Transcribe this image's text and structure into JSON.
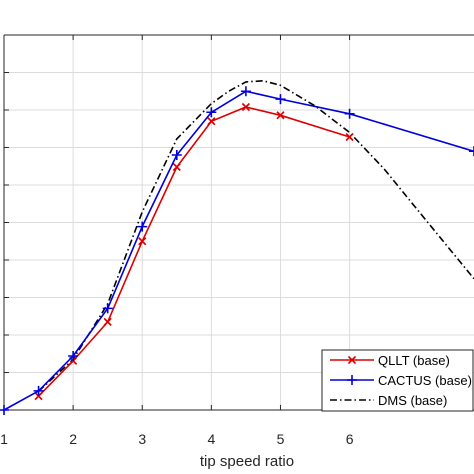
{
  "chart_data": {
    "type": "line",
    "xlabel": "tip speed ratio",
    "xlim": [
      1,
      7.8
    ],
    "ylim": [
      0,
      10
    ],
    "x_ticks": [
      1,
      2,
      3,
      4,
      5,
      6
    ],
    "x_tick_labels": [
      "1",
      "2",
      "3",
      "4",
      "5",
      "6"
    ],
    "y_gridlines": [
      1,
      2,
      3,
      4,
      5,
      6,
      7,
      8,
      9
    ],
    "grid": true,
    "legend_position": "bottom-right",
    "series": [
      {
        "name": "QLLT (base)",
        "color": "#dd0000",
        "line_style": "solid",
        "marker": "x",
        "x": [
          1.5,
          2.0,
          2.5,
          3.0,
          3.5,
          4.0,
          4.5,
          5.0,
          6.0
        ],
        "y": [
          0.37,
          1.31,
          2.35,
          4.5,
          6.48,
          7.7,
          8.08,
          7.86,
          7.28
        ]
      },
      {
        "name": "CACTUS (base)",
        "color": "#0000dd",
        "line_style": "solid",
        "marker": "+",
        "x": [
          1.0,
          1.5,
          2.0,
          2.5,
          3.0,
          3.5,
          4.0,
          4.5,
          5.0,
          6.0,
          7.8
        ],
        "y": [
          0.0,
          0.51,
          1.44,
          2.71,
          4.89,
          6.8,
          7.94,
          8.5,
          8.29,
          7.9,
          6.9
        ]
      },
      {
        "name": "DMS (base)",
        "color": "#000000",
        "line_style": "dashdot",
        "marker": "none",
        "x": [
          1.5,
          2.0,
          2.5,
          3.0,
          3.5,
          4.0,
          4.25,
          4.5,
          4.75,
          5.0,
          5.5,
          6.0,
          6.5,
          7.0,
          7.8
        ],
        "y": [
          0.5,
          1.35,
          2.83,
          5.28,
          7.23,
          8.17,
          8.5,
          8.75,
          8.78,
          8.66,
          8.11,
          7.4,
          6.43,
          5.3,
          3.5
        ]
      }
    ]
  }
}
